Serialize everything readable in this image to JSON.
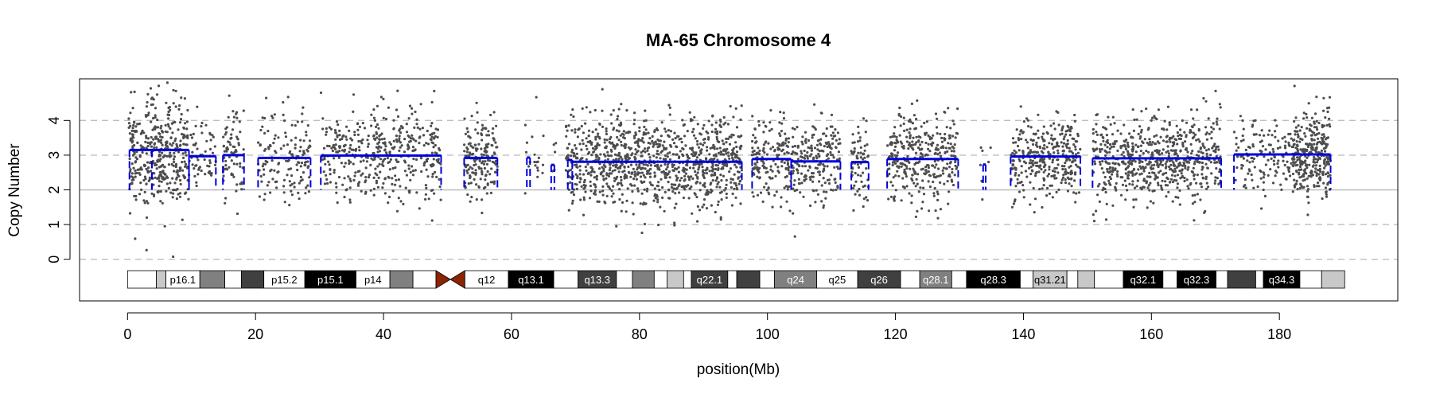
{
  "chart_data": {
    "type": "scatter",
    "title": "MA-65  Chromosome 4",
    "xlabel": "position(Mb)",
    "ylabel": "Copy Number",
    "xlim": [
      -7.5,
      198.5
    ],
    "ylim": [
      -1.2,
      5.2
    ],
    "x_ticks": [
      0,
      20,
      40,
      60,
      80,
      100,
      120,
      140,
      160,
      180
    ],
    "y_ticks": [
      0,
      1,
      2,
      3,
      4
    ],
    "grid": {
      "dashed_y": [
        0,
        1,
        3,
        4
      ],
      "solid_y": [
        2
      ]
    },
    "colors": {
      "points": "#4d4d4d",
      "segments": "#0000dd",
      "grid": "#bebebe",
      "centromere": "#8b2500"
    },
    "segments": [
      {
        "start": 0.3,
        "end": 3.8,
        "value": 3.15
      },
      {
        "start": 3.8,
        "end": 9.6,
        "value": 3.15
      },
      {
        "start": 9.6,
        "end": 13.8,
        "value": 2.97
      },
      {
        "start": 14.9,
        "end": 18.2,
        "value": 3.0
      },
      {
        "start": 20.4,
        "end": 28.6,
        "value": 2.92
      },
      {
        "start": 30.2,
        "end": 49.0,
        "value": 2.99
      },
      {
        "start": 52.6,
        "end": 57.8,
        "value": 2.92
      },
      {
        "start": 62.4,
        "end": 62.9,
        "value": 2.93
      },
      {
        "start": 66.2,
        "end": 66.7,
        "value": 2.72
      },
      {
        "start": 68.8,
        "end": 69.5,
        "value": 2.86
      },
      {
        "start": 69.5,
        "end": 96.0,
        "value": 2.81
      },
      {
        "start": 97.6,
        "end": 103.7,
        "value": 2.89
      },
      {
        "start": 103.7,
        "end": 111.4,
        "value": 2.82
      },
      {
        "start": 113.1,
        "end": 115.8,
        "value": 2.8
      },
      {
        "start": 118.7,
        "end": 129.8,
        "value": 2.89
      },
      {
        "start": 133.7,
        "end": 134.1,
        "value": 2.73
      },
      {
        "start": 138.0,
        "end": 148.9,
        "value": 2.96
      },
      {
        "start": 150.8,
        "end": 170.9,
        "value": 2.91
      },
      {
        "start": 172.9,
        "end": 188.0,
        "value": 3.02
      }
    ],
    "point_clusters": [
      {
        "start": 0.2,
        "end": 9.6,
        "mean": 3.1,
        "sd": 0.85,
        "n": 420
      },
      {
        "start": 9.6,
        "end": 13.8,
        "mean": 2.95,
        "sd": 0.6,
        "n": 60
      },
      {
        "start": 14.9,
        "end": 18.2,
        "mean": 3.0,
        "sd": 0.7,
        "n": 80
      },
      {
        "start": 20.4,
        "end": 28.6,
        "mean": 2.92,
        "sd": 0.65,
        "n": 150
      },
      {
        "start": 30.2,
        "end": 49.0,
        "mean": 3.0,
        "sd": 0.65,
        "n": 430
      },
      {
        "start": 52.6,
        "end": 57.8,
        "mean": 2.92,
        "sd": 0.55,
        "n": 170
      },
      {
        "start": 62.0,
        "end": 67.0,
        "mean": 2.8,
        "sd": 0.55,
        "n": 25
      },
      {
        "start": 68.5,
        "end": 96.0,
        "mean": 2.81,
        "sd": 0.65,
        "n": 1050
      },
      {
        "start": 97.6,
        "end": 111.4,
        "mean": 2.85,
        "sd": 0.6,
        "n": 380
      },
      {
        "start": 113.1,
        "end": 115.8,
        "mean": 2.8,
        "sd": 0.6,
        "n": 70
      },
      {
        "start": 118.7,
        "end": 129.8,
        "mean": 2.89,
        "sd": 0.65,
        "n": 340
      },
      {
        "start": 133.0,
        "end": 135.0,
        "mean": 2.75,
        "sd": 0.5,
        "n": 8
      },
      {
        "start": 138.0,
        "end": 148.9,
        "mean": 2.96,
        "sd": 0.6,
        "n": 340
      },
      {
        "start": 150.8,
        "end": 170.9,
        "mean": 2.91,
        "sd": 0.6,
        "n": 650
      },
      {
        "start": 172.9,
        "end": 182.0,
        "mean": 3.0,
        "sd": 0.5,
        "n": 140
      },
      {
        "start": 182.0,
        "end": 188.0,
        "mean": 3.02,
        "sd": 0.6,
        "n": 320
      }
    ],
    "ideogram": {
      "start": 0,
      "end": 190.2,
      "centromere": [
        48.2,
        52.7
      ],
      "bands": [
        {
          "start": 0,
          "end": 4.5,
          "color": "#ffffff",
          "label": ""
        },
        {
          "start": 4.5,
          "end": 6.0,
          "color": "#c8c8c8",
          "label": ""
        },
        {
          "start": 6.0,
          "end": 11.3,
          "color": "#ffffff",
          "label": "p16.1"
        },
        {
          "start": 11.3,
          "end": 15.2,
          "color": "#808080",
          "label": ""
        },
        {
          "start": 15.2,
          "end": 17.8,
          "color": "#ffffff",
          "label": ""
        },
        {
          "start": 17.8,
          "end": 21.3,
          "color": "#404040",
          "label": ""
        },
        {
          "start": 21.3,
          "end": 27.7,
          "color": "#ffffff",
          "label": "p15.2"
        },
        {
          "start": 27.7,
          "end": 35.7,
          "color": "#000000",
          "label": "p15.1"
        },
        {
          "start": 35.7,
          "end": 41.0,
          "color": "#ffffff",
          "label": "p14"
        },
        {
          "start": 41.0,
          "end": 44.6,
          "color": "#808080",
          "label": ""
        },
        {
          "start": 44.6,
          "end": 48.2,
          "color": "#ffffff",
          "label": ""
        },
        {
          "start": 52.7,
          "end": 59.5,
          "color": "#ffffff",
          "label": "q12"
        },
        {
          "start": 59.5,
          "end": 66.6,
          "color": "#000000",
          "label": "q13.1"
        },
        {
          "start": 66.6,
          "end": 70.4,
          "color": "#ffffff",
          "label": ""
        },
        {
          "start": 70.4,
          "end": 76.4,
          "color": "#404040",
          "label": "q13.3"
        },
        {
          "start": 76.4,
          "end": 78.9,
          "color": "#ffffff",
          "label": ""
        },
        {
          "start": 78.9,
          "end": 82.3,
          "color": "#808080",
          "label": ""
        },
        {
          "start": 82.3,
          "end": 84.3,
          "color": "#ffffff",
          "label": ""
        },
        {
          "start": 84.3,
          "end": 86.9,
          "color": "#c8c8c8",
          "label": ""
        },
        {
          "start": 86.9,
          "end": 88.1,
          "color": "#ffffff",
          "label": ""
        },
        {
          "start": 88.1,
          "end": 93.8,
          "color": "#404040",
          "label": "q22.1"
        },
        {
          "start": 93.8,
          "end": 95.2,
          "color": "#ffffff",
          "label": ""
        },
        {
          "start": 95.2,
          "end": 98.8,
          "color": "#404040",
          "label": ""
        },
        {
          "start": 98.8,
          "end": 101.1,
          "color": "#ffffff",
          "label": ""
        },
        {
          "start": 101.1,
          "end": 107.7,
          "color": "#808080",
          "label": "q24"
        },
        {
          "start": 107.7,
          "end": 114.1,
          "color": "#ffffff",
          "label": "q25"
        },
        {
          "start": 114.1,
          "end": 120.8,
          "color": "#404040",
          "label": "q26"
        },
        {
          "start": 120.8,
          "end": 123.8,
          "color": "#ffffff",
          "label": ""
        },
        {
          "start": 123.8,
          "end": 128.8,
          "color": "#808080",
          "label": "q28.1"
        },
        {
          "start": 128.8,
          "end": 131.1,
          "color": "#ffffff",
          "label": ""
        },
        {
          "start": 131.1,
          "end": 139.5,
          "color": "#000000",
          "label": "q28.3"
        },
        {
          "start": 139.5,
          "end": 141.5,
          "color": "#ffffff",
          "label": ""
        },
        {
          "start": 141.5,
          "end": 146.8,
          "color": "#c8c8c8",
          "label": "q31.21"
        },
        {
          "start": 146.8,
          "end": 148.5,
          "color": "#ffffff",
          "label": ""
        },
        {
          "start": 148.5,
          "end": 151.1,
          "color": "#c8c8c8",
          "label": ""
        },
        {
          "start": 151.1,
          "end": 155.6,
          "color": "#ffffff",
          "label": ""
        },
        {
          "start": 155.6,
          "end": 161.8,
          "color": "#000000",
          "label": "q32.1"
        },
        {
          "start": 161.8,
          "end": 164.0,
          "color": "#ffffff",
          "label": ""
        },
        {
          "start": 164.0,
          "end": 170.1,
          "color": "#000000",
          "label": "q32.3"
        },
        {
          "start": 170.1,
          "end": 171.9,
          "color": "#ffffff",
          "label": ""
        },
        {
          "start": 171.9,
          "end": 176.3,
          "color": "#404040",
          "label": ""
        },
        {
          "start": 176.3,
          "end": 177.5,
          "color": "#ffffff",
          "label": ""
        },
        {
          "start": 177.5,
          "end": 183.2,
          "color": "#000000",
          "label": "q34.3"
        },
        {
          "start": 183.2,
          "end": 186.6,
          "color": "#ffffff",
          "label": ""
        },
        {
          "start": 186.6,
          "end": 190.2,
          "color": "#c8c8c8",
          "label": ""
        }
      ]
    }
  }
}
